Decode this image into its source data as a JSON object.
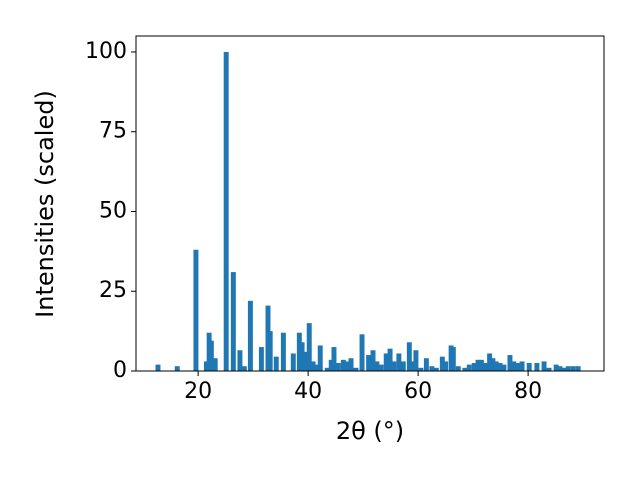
{
  "chart_data": {
    "type": "bar",
    "color": "#1f77b4",
    "x_label": "2θ (°)",
    "y_label": "Intensities (scaled)",
    "x": [
      12.7,
      16.2,
      19.6,
      21.5,
      22.0,
      22.4,
      23.1,
      25.1,
      26.4,
      27.6,
      28.4,
      29.5,
      31.5,
      32.7,
      33.1,
      34.2,
      35.5,
      37.3,
      38.4,
      38.9,
      39.5,
      40.2,
      40.9,
      41.5,
      42.2,
      43.5,
      44.2,
      44.7,
      45.5,
      46.4,
      47.1,
      47.8,
      48.7,
      49.8,
      51.0,
      51.8,
      52.5,
      53.3,
      54.2,
      54.9,
      55.6,
      56.5,
      57.3,
      58.4,
      59.1,
      59.6,
      60.5,
      61.5,
      62.5,
      63.3,
      64.4,
      65.0,
      66.0,
      66.4,
      67.3,
      68.5,
      69.3,
      70.2,
      70.9,
      71.5,
      72.2,
      73.0,
      73.6,
      74.2,
      74.9,
      75.6,
      76.7,
      77.4,
      78.1,
      78.9,
      80.2,
      81.6,
      82.9,
      83.8,
      85.1,
      85.8,
      86.5,
      87.3,
      88.2,
      89.1
    ],
    "values": [
      2,
      1.5,
      38,
      3,
      12,
      9.5,
      4,
      100,
      31,
      6.5,
      1.5,
      22,
      7.5,
      20.5,
      12.5,
      4.5,
      12,
      5.5,
      12,
      9,
      6,
      15,
      3,
      2,
      8,
      1,
      3.5,
      7.5,
      2.5,
      3.5,
      3,
      4,
      1,
      11.5,
      5,
      6.5,
      3,
      2,
      5.5,
      7,
      3,
      5.5,
      3,
      9,
      3,
      6.5,
      1,
      4,
      1.5,
      1,
      4.5,
      3,
      8,
      7.5,
      1.5,
      1,
      2,
      2.5,
      3.5,
      3.5,
      2.5,
      5.5,
      4,
      3,
      2.5,
      2,
      5,
      3,
      2.5,
      3,
      2.5,
      2.5,
      3,
      1,
      2,
      1.5,
      1,
      1.5,
      1.5,
      1.5
    ],
    "xlim": [
      8.7,
      93.8
    ],
    "ylim": [
      0,
      105
    ],
    "xticks": [
      20,
      40,
      60,
      80
    ],
    "yticks": [
      0,
      25,
      50,
      75,
      100
    ]
  }
}
